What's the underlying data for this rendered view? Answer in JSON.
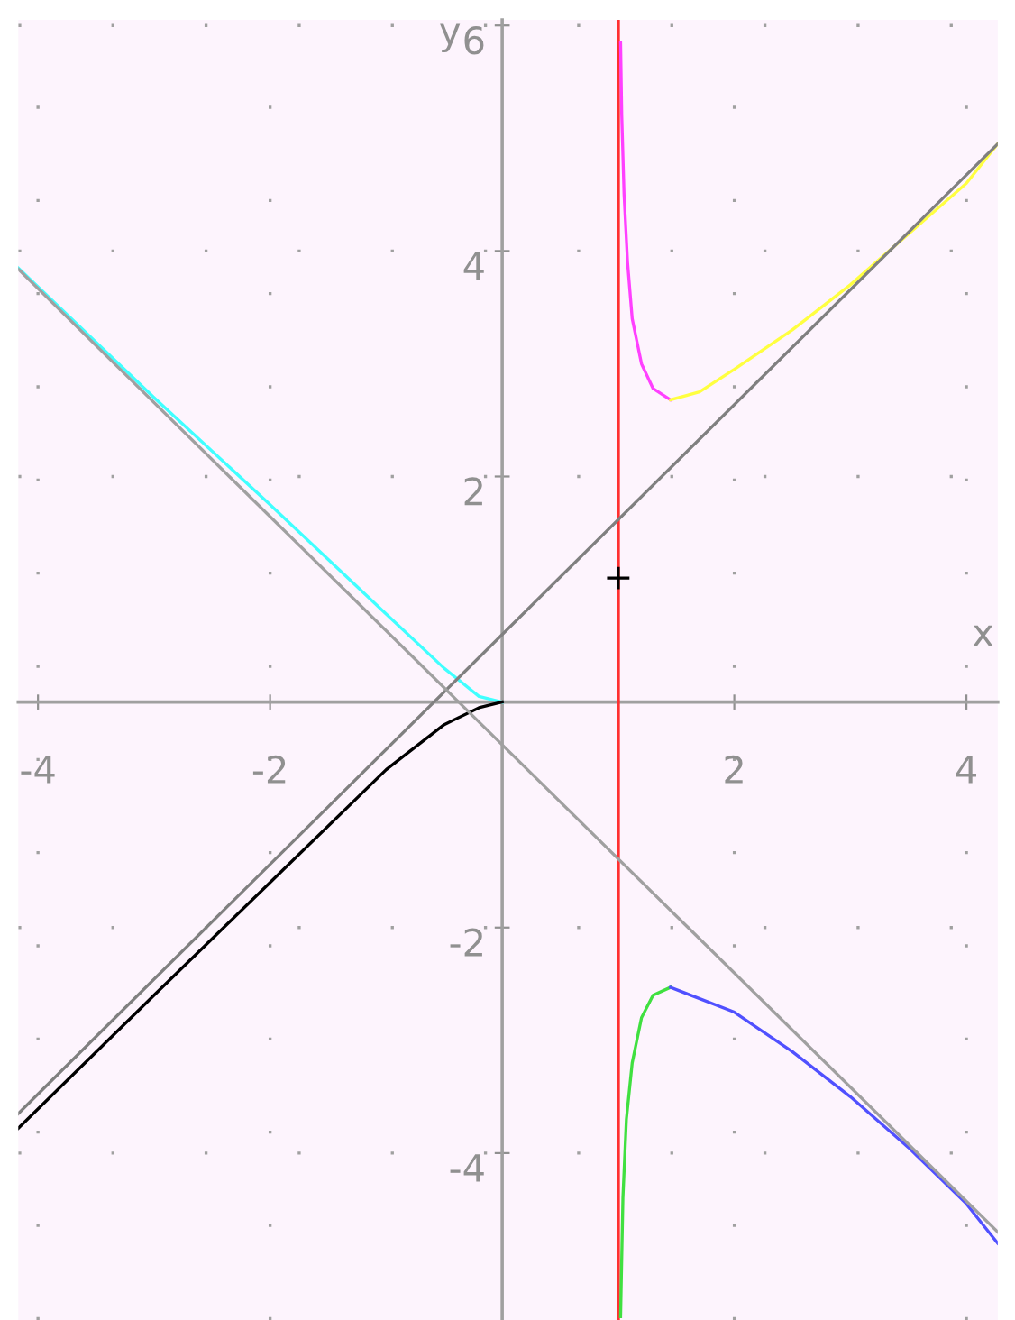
{
  "chart_data": {
    "type": "line",
    "xlabel": "x",
    "ylabel": "y",
    "xlim": [
      -4.17,
      4.27
    ],
    "ylim": [
      -5.48,
      6.05
    ],
    "xticks": [
      -4,
      -2,
      2,
      4
    ],
    "yticks": [
      -4,
      -2,
      2,
      4,
      6
    ],
    "grid": true,
    "legend": false,
    "marker": "none",
    "line_style": "solid",
    "ref_lines": [
      {
        "axis": "x",
        "value": 1,
        "label": null,
        "color": "#ff3030"
      }
    ],
    "series": [
      {
        "color": "#ff40ff",
        "x": [
          1.02,
          1.03,
          1.05,
          1.08,
          1.12,
          1.2,
          1.3,
          1.45
        ],
        "values": [
          5.85,
          5.2,
          4.5,
          3.9,
          3.4,
          3.0,
          2.78,
          2.68
        ]
      },
      {
        "color": "#ffff40",
        "x": [
          1.45,
          1.7,
          2,
          2.5,
          3,
          3.5,
          4,
          4.27
        ],
        "values": [
          2.68,
          2.75,
          2.95,
          3.3,
          3.7,
          4.15,
          4.6,
          4.95
        ]
      },
      {
        "color": "#40e040",
        "x": [
          1.02,
          1.04,
          1.07,
          1.12,
          1.2,
          1.3,
          1.45
        ],
        "values": [
          -5.45,
          -4.4,
          -3.7,
          -3.2,
          -2.8,
          -2.6,
          -2.53
        ]
      },
      {
        "color": "#5050ff",
        "x": [
          1.45,
          2,
          2.5,
          3,
          3.5,
          4,
          4.27
        ],
        "values": [
          -2.53,
          -2.75,
          -3.1,
          -3.5,
          -3.95,
          -4.45,
          -4.8
        ]
      },
      {
        "color": "#40ffff",
        "x": [
          -4.17,
          -3,
          -2,
          -1,
          -0.5,
          -0.2,
          0
        ],
        "values": [
          3.85,
          2.7,
          1.75,
          0.78,
          0.3,
          0.05,
          0
        ]
      },
      {
        "color": "#000000",
        "x": [
          -4.17,
          -3,
          -2,
          -1,
          -0.5,
          -0.2,
          0
        ],
        "values": [
          -3.78,
          -2.6,
          -1.6,
          -0.6,
          -0.2,
          -0.05,
          0
        ]
      },
      {
        "color": "#808080",
        "x": [
          -4.17,
          4.27
        ],
        "values": [
          -3.65,
          4.95
        ]
      },
      {
        "color": "#a0a0a0",
        "x": [
          -4.17,
          4.27
        ],
        "values": [
          3.84,
          -4.7
        ]
      },
      {
        "type": "scatter",
        "marker": "cross",
        "color": "#000000",
        "x": [
          1
        ],
        "values": [
          1.1
        ]
      }
    ]
  }
}
